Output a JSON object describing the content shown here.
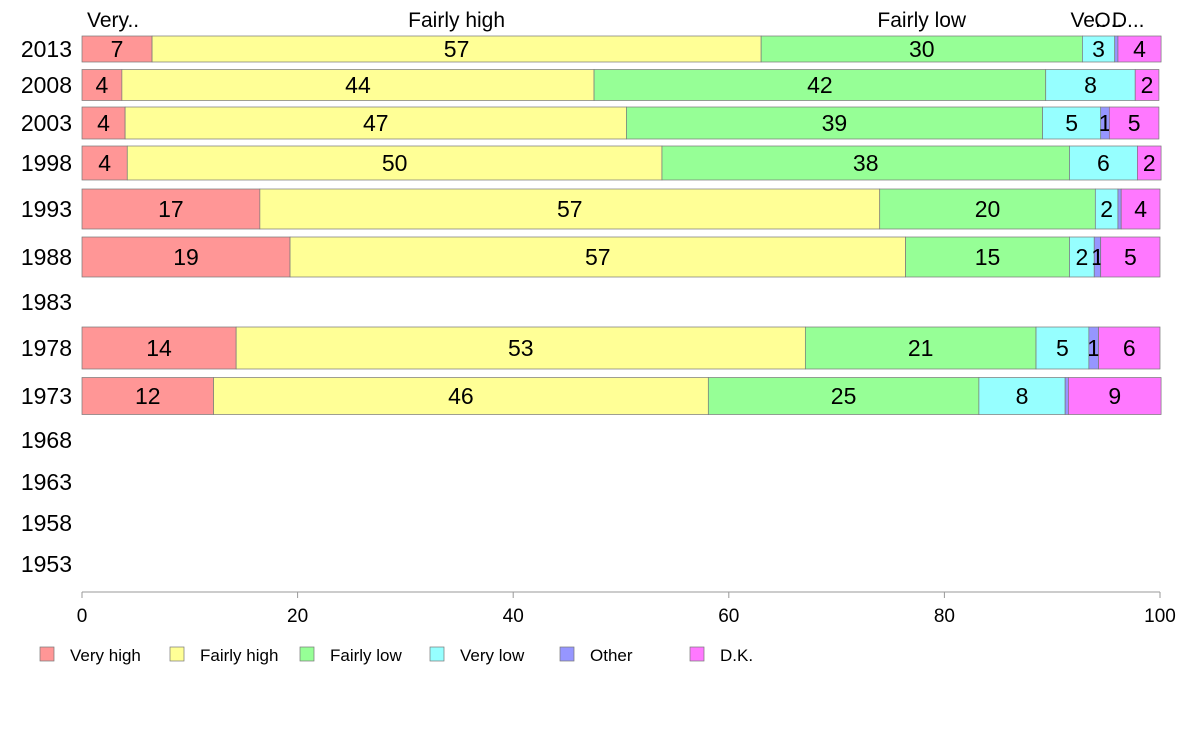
{
  "chart_data": {
    "type": "bar",
    "orientation": "horizontal",
    "stacked": true,
    "xlim": [
      0,
      100
    ],
    "x_ticks": [
      "0",
      "20",
      "40",
      "60",
      "80",
      "100"
    ],
    "categories": [
      "2013",
      "2008",
      "2003",
      "1998",
      "1993",
      "1988",
      "1983",
      "1978",
      "1973",
      "1968",
      "1963",
      "1958",
      "1953"
    ],
    "top_labels": [
      "Very..",
      "Fairly high",
      "Fairly low",
      "Ve..",
      "O..",
      "D..."
    ],
    "series": [
      {
        "name": "Very high",
        "color": "#ff9696",
        "values": [
          6.5,
          3.7,
          4.0,
          4.2,
          16.5,
          19.3,
          null,
          14.3,
          12.2,
          null,
          null,
          null,
          null
        ],
        "labels": [
          "7",
          "4",
          "4",
          "4",
          "17",
          "19",
          "",
          "14",
          "12",
          "",
          "",
          "",
          ""
        ]
      },
      {
        "name": "Fairly high",
        "color": "#ffff96",
        "values": [
          56.5,
          43.8,
          46.5,
          49.6,
          57.5,
          57.1,
          null,
          52.8,
          45.9,
          null,
          null,
          null,
          null
        ],
        "labels": [
          "57",
          "44",
          "47",
          "50",
          "57",
          "57",
          "",
          "53",
          "46",
          "",
          "",
          "",
          ""
        ]
      },
      {
        "name": "Fairly low",
        "color": "#96ff96",
        "values": [
          29.8,
          41.9,
          38.6,
          37.8,
          20.0,
          15.2,
          null,
          21.4,
          25.1,
          null,
          null,
          null,
          null
        ],
        "labels": [
          "30",
          "42",
          "39",
          "38",
          "20",
          "15",
          "",
          "21",
          "25",
          "",
          "",
          "",
          ""
        ]
      },
      {
        "name": "Very low",
        "color": "#96ffff",
        "values": [
          3.0,
          8.3,
          5.4,
          6.3,
          2.1,
          2.3,
          null,
          4.9,
          8.0,
          null,
          null,
          null,
          null
        ],
        "labels": [
          "3",
          "8",
          "5",
          "6",
          "2",
          "2",
          "",
          "5",
          "8",
          "",
          "",
          "",
          ""
        ]
      },
      {
        "name": "Other",
        "color": "#9696ff",
        "values": [
          0.3,
          0.0,
          0.8,
          0.0,
          0.3,
          0.6,
          null,
          0.9,
          0.3,
          null,
          null,
          null,
          null
        ],
        "labels": [
          "",
          "",
          "1",
          "",
          "",
          "1",
          "",
          "1",
          "",
          "",
          "",
          "",
          ""
        ]
      },
      {
        "name": "D.K.",
        "color": "#ff78ff",
        "values": [
          4.0,
          2.2,
          4.6,
          2.2,
          3.6,
          5.5,
          null,
          5.7,
          8.6,
          null,
          null,
          null,
          null
        ],
        "labels": [
          "4",
          "2",
          "5",
          "2",
          "4",
          "5",
          "",
          "6",
          "9",
          "",
          "",
          "",
          ""
        ]
      }
    ],
    "legend": {
      "placement": "bottom"
    },
    "grid": false
  }
}
